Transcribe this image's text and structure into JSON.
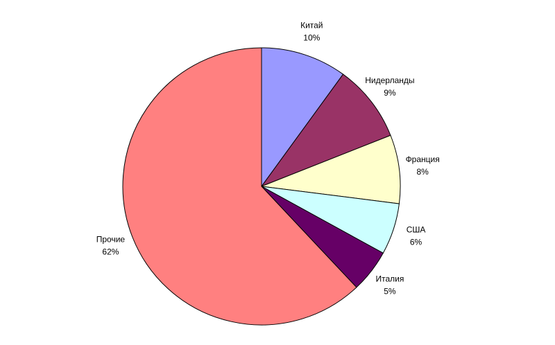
{
  "chart_data": {
    "type": "pie",
    "categories": [
      "Китай",
      "Нидерланды",
      "Франция",
      "США",
      "Италия",
      "Прочие"
    ],
    "values": [
      10,
      9,
      8,
      6,
      5,
      62
    ],
    "value_labels": [
      "10%",
      "9%",
      "8%",
      "6%",
      "5%",
      "62%"
    ],
    "colors": [
      "#9999ff",
      "#993366",
      "#ffffcc",
      "#ccffff",
      "#660066",
      "#ff8080"
    ]
  }
}
